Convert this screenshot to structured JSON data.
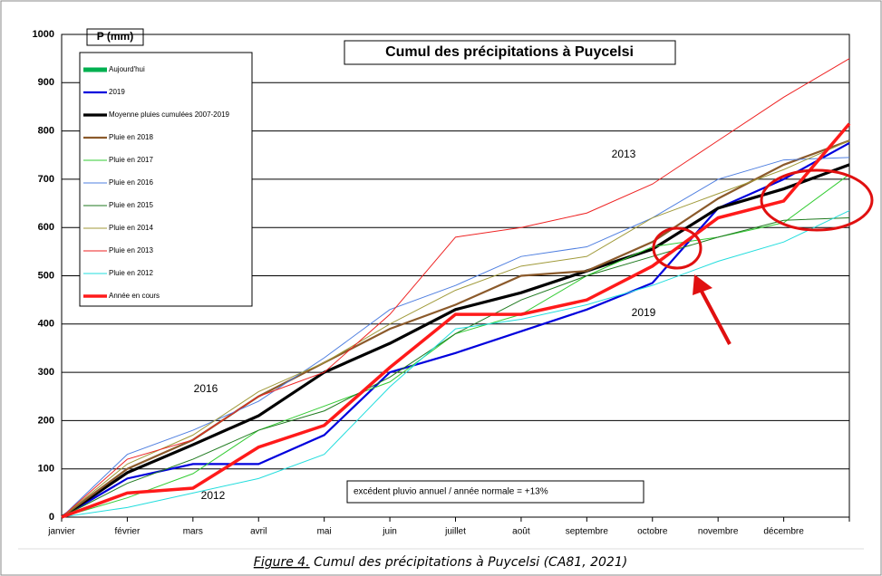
{
  "chart_data": {
    "type": "line",
    "title": "Cumul des précipitations à Puycelsi",
    "y_label": "P (mm)",
    "categories": [
      "janvier",
      "février",
      "mars",
      "avril",
      "mai",
      "juin",
      "juillet",
      "août",
      "septembre",
      "octobre",
      "novembre",
      "décembre",
      null
    ],
    "ylim": [
      0,
      1000
    ],
    "yticks": [
      0,
      100,
      200,
      300,
      400,
      500,
      600,
      700,
      800,
      900,
      1000
    ],
    "grid": true,
    "legend": "top-left",
    "series": [
      {
        "name": "Aujourd'hui",
        "color": "#00b050",
        "width": 5,
        "values": [
          null,
          null,
          null,
          null,
          null,
          null,
          null,
          null,
          null,
          null,
          null,
          null,
          null
        ]
      },
      {
        "name": "2019",
        "color": "#0000dd",
        "width": 2.2,
        "values": [
          0,
          80,
          110,
          110,
          170,
          300,
          340,
          385,
          430,
          485,
          640,
          700,
          775
        ]
      },
      {
        "name": "Moyenne pluies cumulées 2007-2019",
        "color": "#000000",
        "width": 3.2,
        "values": [
          0,
          92,
          150,
          210,
          300,
          360,
          430,
          465,
          510,
          555,
          640,
          680,
          730
        ]
      },
      {
        "name": "Pluie en 2018",
        "color": "#8b5a2b",
        "width": 2.2,
        "values": [
          0,
          100,
          160,
          250,
          320,
          390,
          440,
          500,
          510,
          570,
          660,
          730,
          780
        ]
      },
      {
        "name": "Pluie en 2017",
        "color": "#33cc33",
        "width": 1,
        "values": [
          0,
          40,
          90,
          180,
          230,
          280,
          380,
          420,
          500,
          560,
          580,
          610,
          710
        ]
      },
      {
        "name": "Pluie en 2016",
        "color": "#4f7fe0",
        "width": 1,
        "values": [
          0,
          130,
          180,
          240,
          330,
          430,
          480,
          540,
          560,
          620,
          700,
          740,
          745
        ]
      },
      {
        "name": "Pluie en 2015",
        "color": "#1f7a1f",
        "width": 1,
        "values": [
          0,
          70,
          120,
          180,
          220,
          290,
          380,
          450,
          500,
          540,
          580,
          615,
          620
        ]
      },
      {
        "name": "Pluie en 2014",
        "color": "#a09a3a",
        "width": 1,
        "values": [
          0,
          110,
          170,
          260,
          320,
          400,
          470,
          520,
          540,
          620,
          670,
          720,
          780
        ]
      },
      {
        "name": "Pluie en 2013",
        "color": "#ee2222",
        "width": 1,
        "values": [
          0,
          120,
          160,
          250,
          300,
          420,
          580,
          600,
          630,
          690,
          780,
          870,
          950
        ]
      },
      {
        "name": "Pluie en 2012",
        "color": "#22dddd",
        "width": 1,
        "values": [
          0,
          20,
          50,
          80,
          130,
          270,
          390,
          410,
          440,
          480,
          530,
          570,
          635
        ]
      },
      {
        "name": "Année en cours",
        "color": "#ff1a1a",
        "width": 3.5,
        "values": [
          0,
          50,
          60,
          145,
          190,
          310,
          420,
          420,
          450,
          520,
          620,
          655,
          815
        ]
      }
    ],
    "annotations": [
      "2013",
      "2016",
      "2012",
      "2019"
    ],
    "note": "excédent pluvio annuel / année normale =  +13%"
  },
  "caption": {
    "label": "Figure 4.",
    "text": "Cumul des précipitations à Puycelsi (CA81, 2021)"
  }
}
